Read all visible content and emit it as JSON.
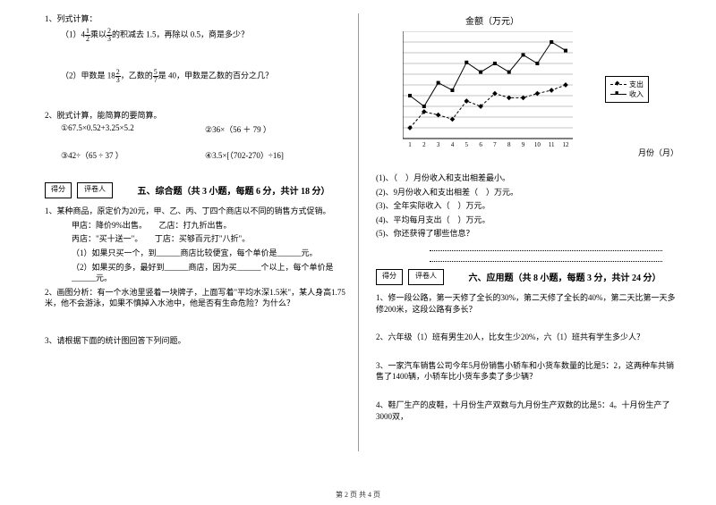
{
  "left": {
    "q1_title": "1、列式计算：",
    "q1_1": "（1）4",
    "q1_1b": "乘以",
    "q1_1c": "的积减去 1.5，再除以 0.5，商是多少？",
    "frac_4_1_2_n": "1",
    "frac_4_1_2_d": "2",
    "frac_2_3_n": "2",
    "frac_2_3_d": "3",
    "q1_2a": "（2）甲数是 18",
    "q1_2b": "，乙数的",
    "q1_2c": "是 40，甲数是乙数的百分之几？",
    "frac_18_2_3_n": "2",
    "frac_18_2_3_d": "3",
    "frac_5_7_n": "5",
    "frac_5_7_d": "7",
    "q2_title": "2、脱式计算，能简算的要简算。",
    "q2_eq1": "①67.5×0.52+3.25×5.2",
    "q2_eq2": "②36×（56 ＋ 79 ）",
    "q2_eq3": "③42÷（65 ÷ 37 ）",
    "q2_eq4": "④3.5×[（702-270）÷16]",
    "score_l1": "得分",
    "score_l2": "评卷人",
    "sec5": "五、综合题（共 3 小题，每题 6 分，共计 18 分）",
    "s5_q1a": "1、某种商品，原定价为20元，甲、乙、丙、丁四个商店以不同的销售方式促销。",
    "s5_q1_jia": "甲店：降价9%出售。　　乙店：打九折出售。",
    "s5_q1_bing": "丙店：\"买十送一\"。　　丁店：买够百元打\"八折\"。",
    "s5_q1_1": "（1）如果只买一个，到______商店比较便宜，每个单价是______元。",
    "s5_q1_2": "（2）如果买的多，最好到______商店，因为买______个以上，每个单价是______元。",
    "s5_q2": "2、画图分析：有一个水池里竖着一块牌子，上面写着\"平均水深1.5米\"，某人身高1.75米，他不会游泳，如果不慎掉入水池中，他是否有生命危险？为什么？",
    "s5_q3": "3、请根据下面的统计图回答下列问题。"
  },
  "right": {
    "chart_title": "金额（万元）",
    "x_label": "月份（月）",
    "legend1": "支出",
    "legend2": "收入",
    "y_ticks": [
      "0",
      "10",
      "20",
      "30",
      "40",
      "50",
      "60",
      "70",
      "80",
      "90",
      "100"
    ],
    "x_ticks": [
      "1",
      "2",
      "3",
      "4",
      "5",
      "6",
      "7",
      "8",
      "9",
      "10",
      "11",
      "12"
    ],
    "income": [
      40,
      30,
      52,
      45,
      71,
      62,
      70,
      62,
      78,
      70,
      90,
      82
    ],
    "expense": [
      10,
      25,
      22,
      18,
      35,
      30,
      42,
      38,
      38,
      42,
      45,
      50
    ],
    "sub1": "(1)、（　）月份收入和支出相差最小。",
    "sub2": "(2)、9月份收入和支出相差（　）万元。",
    "sub3": "(3)、全年实际收入（　）万元。",
    "sub4": "(4)、平均每月支出（　）万元。",
    "sub5": "(5)、你还获得了哪些信息？",
    "score_r1": "得分",
    "score_r2": "评卷人",
    "sec6": "六、应用题（共 8 小题，每题 3 分，共计 24 分）",
    "s6_q1": "1、修一段公路，第一天修了全长的30%，第二天修了全长的40%，第二天比第一天多修200米，这段公路有多长？",
    "s6_q2": "2、六年级（1）班有男生20人，比女生少20%，六（1）班共有学生多少人？",
    "s6_q3": "3、一家汽车销售公司今年5月份销售小轿车和小货车数量的比是5：2，这两种车共销售了1400辆，小轿车比小货车多卖了多少辆？",
    "s6_q4": "4、鞋厂生产的皮鞋，十月份生产双数与九月份生产双数的比是5：4。十月份生产了3000双，"
  },
  "footer": "第 2 页 共 4 页",
  "chart_style": {
    "type": "line",
    "ylim": [
      0,
      100
    ],
    "ytick_step": 10,
    "grid_color": "#888888",
    "background_color": "#ffffff",
    "line_color": "#000000",
    "income_marker": "square",
    "expense_marker": "diamond",
    "income_style": "solid",
    "expense_style": "dashed"
  }
}
